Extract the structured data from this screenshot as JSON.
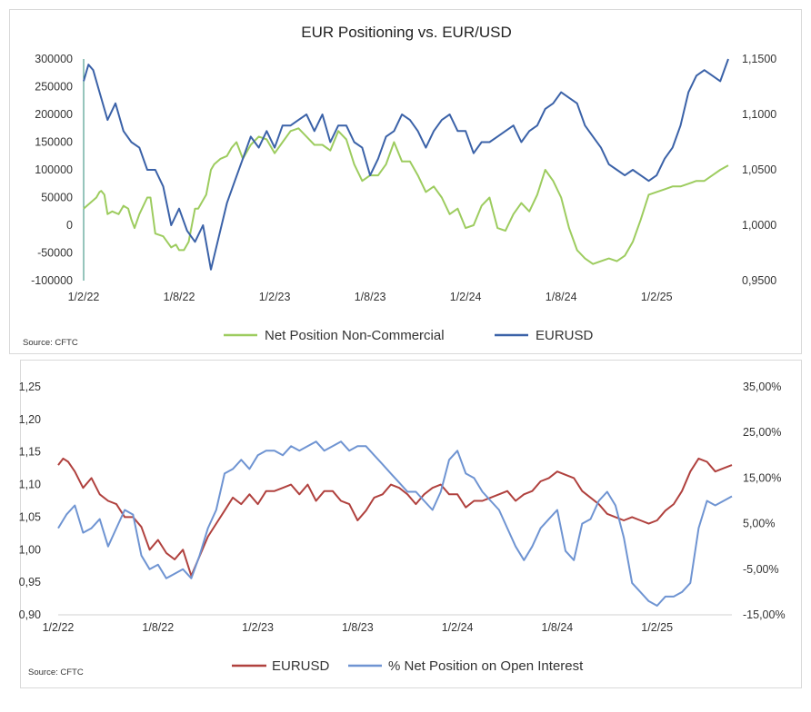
{
  "colors": {
    "net_position": "#9dcc5f",
    "eurusd_top": "#3b62a8",
    "eurusd_bottom": "#b0413e",
    "pct_oi": "#6f94d2",
    "axis": "#d0d0d0"
  },
  "chart_data": [
    {
      "type": "line",
      "title": "EUR Positioning vs. EUR/USD",
      "source": "Source: CFTC",
      "xaxis": {
        "ticks": [
          "1/2/22",
          "1/8/22",
          "1/2/23",
          "1/8/23",
          "1/2/24",
          "1/8/24",
          "1/2/25"
        ]
      },
      "y_left": {
        "min": -100000,
        "max": 300000,
        "ticks": [
          "300000",
          "250000",
          "200000",
          "150000",
          "100000",
          "50000",
          "0",
          "-50000",
          "-100000"
        ]
      },
      "y_right": {
        "min": 0.95,
        "max": 1.15,
        "ticks": [
          "1,1500",
          "1,1000",
          "1,0500",
          "1,0000",
          "0,9500"
        ]
      },
      "legend_position": "bottom",
      "series": [
        {
          "name": "Net Position Non-Commercial",
          "axis": "left",
          "t": [
            0,
            0.4,
            0.8,
            1,
            1.1,
            1.3,
            1.5,
            1.8,
            2.2,
            2.5,
            2.8,
            3,
            3.2,
            3.5,
            4,
            4.2,
            4.5,
            5,
            5.5,
            5.8,
            6,
            6.3,
            6.6,
            7,
            7.2,
            7.4,
            7.7,
            8,
            8.2,
            8.6,
            9,
            9.3,
            9.6,
            10,
            10.5,
            11,
            11.5,
            12,
            12.5,
            13,
            13.5,
            14,
            14.5,
            15,
            15.5,
            16,
            16.5,
            17,
            17.5,
            18,
            18.5,
            19,
            19.5,
            20,
            20.5,
            21,
            21.5,
            22,
            22.5,
            23,
            23.5,
            24,
            24.5,
            25,
            25.5,
            26,
            26.5,
            27,
            27.5,
            28,
            28.5,
            29,
            29.5,
            30,
            30.5,
            31,
            31.5,
            32,
            32.5,
            33,
            33.5,
            34,
            34.5,
            35,
            35.5,
            36,
            36.5,
            37,
            37.5,
            38,
            38.5,
            39,
            39.5,
            40,
            40.5
          ],
          "values": [
            30000,
            40000,
            50000,
            60000,
            62000,
            55000,
            20000,
            25000,
            20000,
            35000,
            30000,
            10000,
            -5000,
            20000,
            50000,
            50000,
            -15000,
            -20000,
            -40000,
            -35000,
            -45000,
            -45000,
            -30000,
            30000,
            30000,
            40000,
            55000,
            100000,
            110000,
            120000,
            125000,
            140000,
            150000,
            120000,
            145000,
            160000,
            155000,
            130000,
            150000,
            170000,
            175000,
            160000,
            145000,
            145000,
            135000,
            170000,
            155000,
            110000,
            80000,
            90000,
            90000,
            110000,
            150000,
            115000,
            115000,
            90000,
            60000,
            70000,
            50000,
            20000,
            30000,
            -5000,
            0,
            35000,
            50000,
            -5000,
            -10000,
            20000,
            40000,
            25000,
            55000,
            100000,
            80000,
            50000,
            -5000,
            -45000,
            -60000,
            -70000,
            -65000,
            -60000,
            -65000,
            -55000,
            -30000,
            10000,
            55000,
            60000,
            65000,
            70000,
            70000,
            75000,
            80000,
            80000,
            90000,
            100000,
            108000
          ]
        },
        {
          "name": "EURUSD",
          "axis": "right",
          "t": [
            0,
            0.3,
            0.6,
            1,
            1.5,
            2,
            2.5,
            3,
            3.5,
            4,
            4.5,
            5,
            5.5,
            6,
            6.5,
            7,
            7.5,
            8,
            8.5,
            9,
            9.5,
            10,
            10.5,
            11,
            11.5,
            12,
            12.5,
            13,
            13.5,
            14,
            14.5,
            15,
            15.5,
            16,
            16.5,
            17,
            17.5,
            18,
            18.5,
            19,
            19.5,
            20,
            20.5,
            21,
            21.5,
            22,
            22.5,
            23,
            23.5,
            24,
            24.5,
            25,
            25.5,
            26,
            26.5,
            27,
            27.5,
            28,
            28.5,
            29,
            29.5,
            30,
            30.5,
            31,
            31.5,
            32,
            32.5,
            33,
            33.5,
            34,
            34.5,
            35,
            35.5,
            36,
            36.5,
            37,
            37.5,
            38,
            38.5,
            39,
            39.5,
            40,
            40.5
          ],
          "values": [
            1.13,
            1.145,
            1.14,
            1.12,
            1.095,
            1.11,
            1.085,
            1.075,
            1.07,
            1.05,
            1.05,
            1.035,
            1.0,
            1.015,
            0.995,
            0.985,
            1.0,
            0.96,
            0.99,
            1.02,
            1.04,
            1.06,
            1.08,
            1.07,
            1.085,
            1.07,
            1.09,
            1.09,
            1.095,
            1.1,
            1.085,
            1.1,
            1.075,
            1.09,
            1.09,
            1.075,
            1.07,
            1.045,
            1.06,
            1.08,
            1.085,
            1.1,
            1.095,
            1.085,
            1.07,
            1.085,
            1.095,
            1.1,
            1.085,
            1.085,
            1.065,
            1.075,
            1.075,
            1.08,
            1.085,
            1.09,
            1.075,
            1.085,
            1.09,
            1.105,
            1.11,
            1.12,
            1.115,
            1.11,
            1.09,
            1.08,
            1.07,
            1.055,
            1.05,
            1.045,
            1.05,
            1.045,
            1.04,
            1.045,
            1.06,
            1.07,
            1.09,
            1.12,
            1.135,
            1.14,
            1.135,
            1.13,
            1.15
          ]
        }
      ]
    },
    {
      "type": "line",
      "title": "",
      "source": "Source: CFTC",
      "xaxis": {
        "ticks": [
          "1/2/22",
          "1/8/22",
          "1/2/23",
          "1/8/23",
          "1/2/24",
          "1/8/24",
          "1/2/25"
        ]
      },
      "y_left": {
        "min": 0.9,
        "max": 1.25,
        "ticks": [
          "1,25",
          "1,20",
          "1,15",
          "1,10",
          "1,05",
          "1,00",
          "0,95",
          "0,90"
        ]
      },
      "y_right": {
        "min": -15,
        "max": 35,
        "ticks": [
          "35,00%",
          "25,00%",
          "15,00%",
          "5,00%",
          "-5,00%",
          "-15,00%"
        ]
      },
      "legend_position": "bottom",
      "series": [
        {
          "name": "EURUSD",
          "axis": "left",
          "t": [
            0,
            0.3,
            0.6,
            1,
            1.5,
            2,
            2.5,
            3,
            3.5,
            4,
            4.5,
            5,
            5.5,
            6,
            6.5,
            7,
            7.5,
            8,
            8.5,
            9,
            9.5,
            10,
            10.5,
            11,
            11.5,
            12,
            12.5,
            13,
            13.5,
            14,
            14.5,
            15,
            15.5,
            16,
            16.5,
            17,
            17.5,
            18,
            18.5,
            19,
            19.5,
            20,
            20.5,
            21,
            21.5,
            22,
            22.5,
            23,
            23.5,
            24,
            24.5,
            25,
            25.5,
            26,
            26.5,
            27,
            27.5,
            28,
            28.5,
            29,
            29.5,
            30,
            30.5,
            31,
            31.5,
            32,
            32.5,
            33,
            33.5,
            34,
            34.5,
            35,
            35.5,
            36,
            36.5,
            37,
            37.5,
            38,
            38.5,
            39,
            39.5,
            40,
            40.5
          ],
          "values": [
            1.13,
            1.14,
            1.135,
            1.12,
            1.095,
            1.11,
            1.085,
            1.075,
            1.07,
            1.05,
            1.05,
            1.035,
            1.0,
            1.015,
            0.995,
            0.985,
            1.0,
            0.96,
            0.99,
            1.02,
            1.04,
            1.06,
            1.08,
            1.07,
            1.085,
            1.07,
            1.09,
            1.09,
            1.095,
            1.1,
            1.085,
            1.1,
            1.075,
            1.09,
            1.09,
            1.075,
            1.07,
            1.045,
            1.06,
            1.08,
            1.085,
            1.1,
            1.095,
            1.085,
            1.07,
            1.085,
            1.095,
            1.1,
            1.085,
            1.085,
            1.065,
            1.075,
            1.075,
            1.08,
            1.085,
            1.09,
            1.075,
            1.085,
            1.09,
            1.105,
            1.11,
            1.12,
            1.115,
            1.11,
            1.09,
            1.08,
            1.07,
            1.055,
            1.05,
            1.045,
            1.05,
            1.045,
            1.04,
            1.045,
            1.06,
            1.07,
            1.09,
            1.12,
            1.14,
            1.135,
            1.12,
            1.125,
            1.13
          ]
        },
        {
          "name": "% Net Position on Open Interest",
          "axis": "right",
          "t": [
            0,
            0.5,
            1,
            1.5,
            2,
            2.5,
            3,
            3.5,
            4,
            4.5,
            5,
            5.5,
            6,
            6.5,
            7,
            7.5,
            8,
            8.5,
            9,
            9.5,
            10,
            10.5,
            11,
            11.5,
            12,
            12.5,
            13,
            13.5,
            14,
            14.5,
            15,
            15.5,
            16,
            16.5,
            17,
            17.5,
            18,
            18.5,
            19,
            19.5,
            20,
            20.5,
            21,
            21.5,
            22,
            22.5,
            23,
            23.5,
            24,
            24.5,
            25,
            25.5,
            26,
            26.5,
            27,
            27.5,
            28,
            28.5,
            29,
            29.5,
            30,
            30.5,
            31,
            31.5,
            32,
            32.5,
            33,
            33.5,
            34,
            34.5,
            35,
            35.5,
            36,
            36.5,
            37,
            37.5,
            38,
            38.5,
            39,
            39.5,
            40,
            40.5
          ],
          "values": [
            4,
            7,
            9,
            3,
            4,
            6,
            0,
            4,
            8,
            7,
            -2,
            -5,
            -4,
            -7,
            -6,
            -5,
            -7,
            -2,
            4,
            8,
            16,
            17,
            19,
            17,
            20,
            21,
            21,
            20,
            22,
            21,
            22,
            23,
            21,
            22,
            23,
            21,
            22,
            22,
            20,
            18,
            16,
            14,
            12,
            12,
            10,
            8,
            12,
            19,
            21,
            16,
            15,
            12,
            10,
            8,
            4,
            0,
            -3,
            0,
            4,
            6,
            8,
            -1,
            -3,
            5,
            6,
            10,
            12,
            9,
            2,
            -8,
            -10,
            -12,
            -13,
            -11,
            -11,
            -10,
            -8,
            4,
            10,
            9,
            10,
            11
          ]
        }
      ]
    }
  ]
}
